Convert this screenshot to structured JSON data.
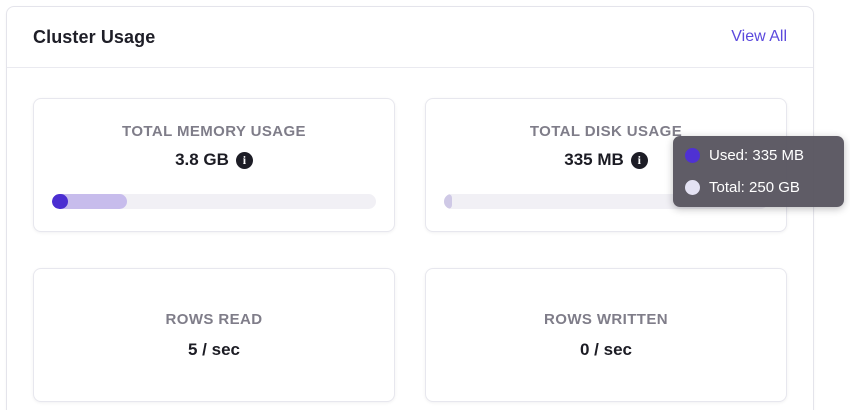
{
  "panel": {
    "title": "Cluster Usage",
    "view_all_label": "View All"
  },
  "cards": [
    {
      "label": "TOTAL MEMORY USAGE",
      "value": "3.8 GB",
      "progress": {
        "used_pct": 5,
        "allocated_pct": 23
      }
    },
    {
      "label": "TOTAL DISK USAGE",
      "value": "335 MB",
      "progress": {
        "used_pct": 2.5,
        "allocated_pct": 0
      }
    },
    {
      "label": "ROWS READ",
      "value": "5 / sec"
    },
    {
      "label": "ROWS WRITTEN",
      "value": "0 / sec"
    }
  ],
  "tooltip": {
    "rows": [
      {
        "label": "Used: 335 MB",
        "dot_color": "#4f31d3"
      },
      {
        "label": "Total: 250 GB",
        "dot_color": "#e4e2f3"
      }
    ]
  },
  "icons": {
    "info_glyph": "i"
  },
  "colors": {
    "accent": "#5b49dd",
    "bar_used": "#4b2ed1",
    "bar_allocated": "#c7bcec",
    "bar_track": "#f1f0f5",
    "disk_used": "#cfc9e6",
    "tooltip_bg": "rgba(86,83,94,0.95)"
  }
}
